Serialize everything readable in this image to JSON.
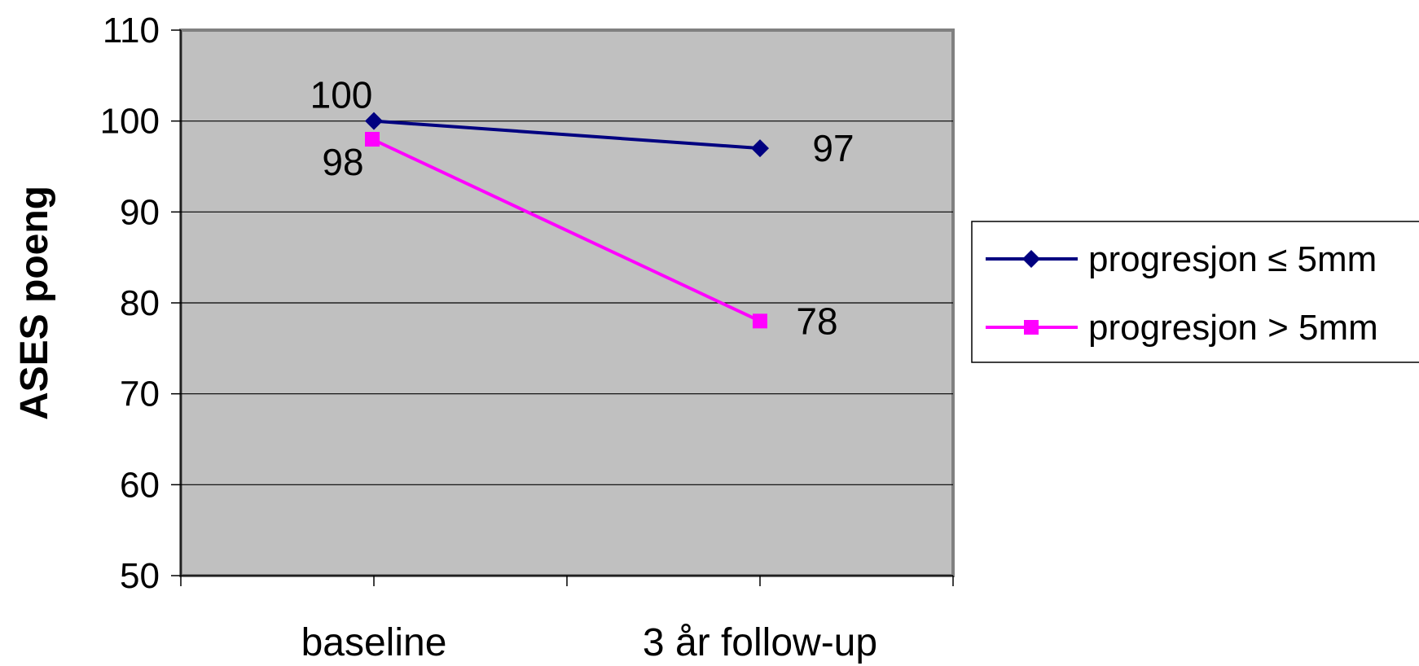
{
  "chart_data": {
    "type": "line",
    "ylabel": "ASES poeng",
    "xlabel": "",
    "categories": [
      "baseline",
      "3 år follow-up"
    ],
    "ylim": [
      50,
      110
    ],
    "yticks": [
      50,
      60,
      70,
      80,
      90,
      100,
      110
    ],
    "grid": true,
    "legend_position": "right",
    "series": [
      {
        "name": "progresjon ≤ 5mm",
        "values": [
          100,
          97
        ],
        "labels": [
          "100",
          "97"
        ],
        "marker": "diamond",
        "color": "#000080"
      },
      {
        "name": "progresjon > 5mm",
        "values": [
          98,
          78
        ],
        "labels": [
          "98",
          "78"
        ],
        "marker": "square",
        "color": "#FF00FF"
      }
    ],
    "plot_background": "#C0C0C0"
  }
}
